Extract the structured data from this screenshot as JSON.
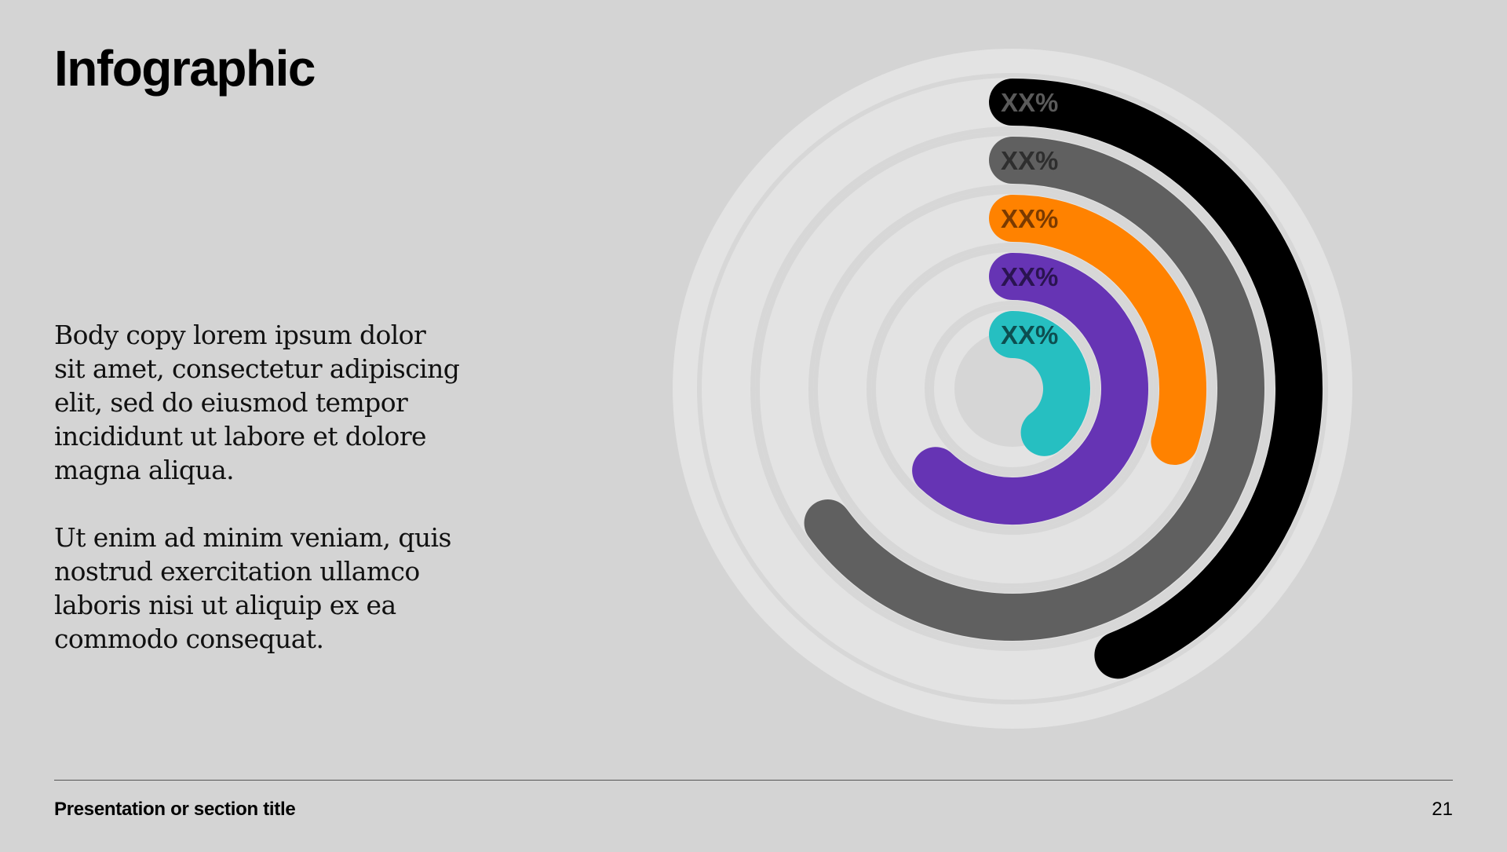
{
  "slide": {
    "title": "Infographic",
    "body_paragraphs": [
      "Body copy lorem ipsum dolor sit amet, consectetur adipiscing elit, sed do eiusmod tempor incididunt ut labore et dolore magna aliqua.",
      "Ut enim ad minim veniam, quis nostrud exercitation ullamco laboris nisi ut aliquip ex ea commodo consequat."
    ],
    "footer_title": "Presentation or section title",
    "page_number": "21"
  },
  "chart_data": {
    "type": "radial-bar",
    "start_angle_deg": 0,
    "direction": "clockwise",
    "series": [
      {
        "label": "XX%",
        "value": 0.44,
        "color": "#000000",
        "label_color": "#5a5a5a"
      },
      {
        "label": "XX%",
        "value": 0.65,
        "color": "#606060",
        "label_color": "#2e2e2e"
      },
      {
        "label": "XX%",
        "value": 0.3,
        "color": "#ff8200",
        "label_color": "#7a3a00"
      },
      {
        "label": "XX%",
        "value": 0.62,
        "color": "#6634b4",
        "label_color": "#2a1450"
      },
      {
        "label": "XX%",
        "value": 0.4,
        "color": "#26bfc1",
        "label_color": "#0d4e50"
      }
    ],
    "track_color": "#e3e3e3",
    "track_gap_color": "#d7d7d7",
    "background_disc_color": "#e3e3e3",
    "center_disc_color": "#d6d6d6"
  }
}
